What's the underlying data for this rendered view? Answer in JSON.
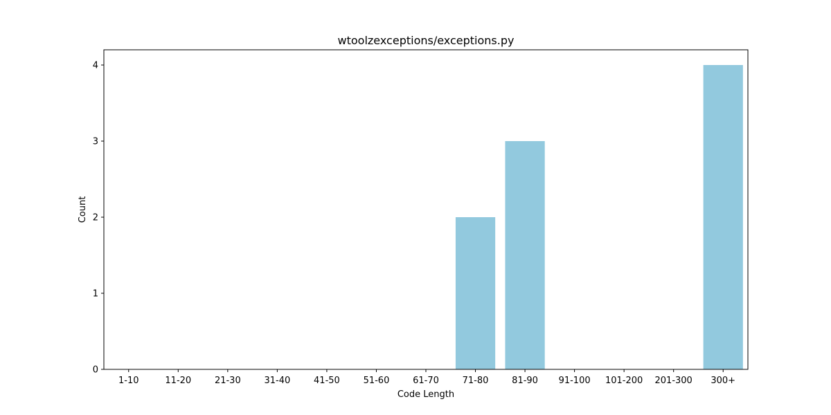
{
  "chart_data": {
    "type": "bar",
    "title": "wtoolzexceptions/exceptions.py",
    "xlabel": "Code Length",
    "ylabel": "Count",
    "categories": [
      "1-10",
      "11-20",
      "21-30",
      "31-40",
      "41-50",
      "51-60",
      "61-70",
      "71-80",
      "81-90",
      "91-100",
      "101-200",
      "201-300",
      "300+"
    ],
    "values": [
      0,
      0,
      0,
      0,
      0,
      0,
      0,
      2,
      3,
      0,
      0,
      0,
      4
    ],
    "ylim": [
      0,
      4.2
    ],
    "yticks": [
      0,
      1,
      2,
      3,
      4
    ],
    "grid": false,
    "bar_color": "#92c9de"
  }
}
